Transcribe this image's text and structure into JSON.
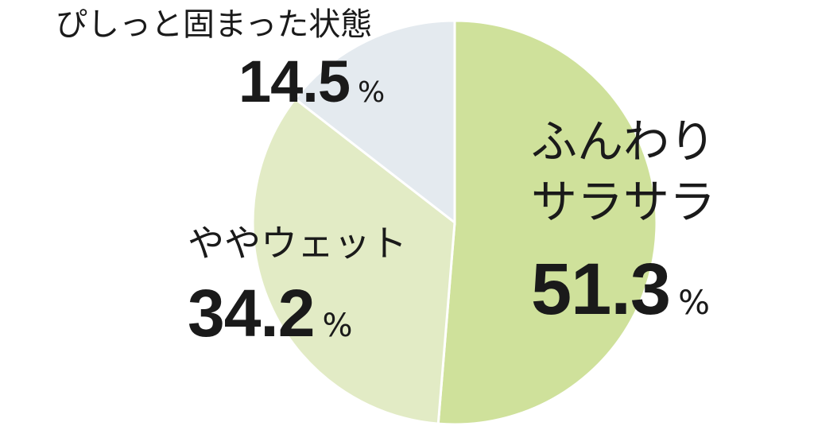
{
  "chart_data": {
    "type": "pie",
    "categories": [
      "ふんわり\nサラサラ",
      "ややウェット",
      "ぴしっと固まった状態"
    ],
    "values": [
      51.3,
      34.2,
      14.5
    ],
    "unit": "%",
    "colors": [
      "#cfe19b",
      "#e2ebc5",
      "#e4eaef"
    ]
  }
}
